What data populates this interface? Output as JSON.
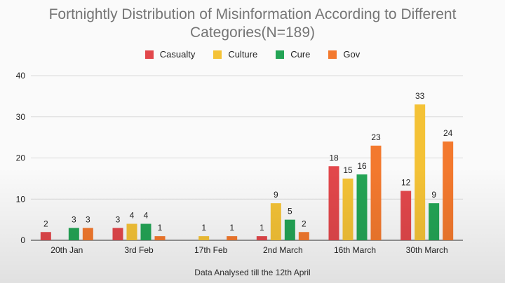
{
  "chart_data": {
    "type": "bar",
    "title": "Fortnightly Distribution of Misinformation According to Different Categories(N=189)",
    "title_lines": [
      "Fortnightly Distribution of Misinformation According to Different",
      "Categories(N=189)"
    ],
    "categories": [
      "20th Jan",
      "3rd Feb",
      "17th Feb",
      "2nd March",
      "16th March",
      "30th March"
    ],
    "series": [
      {
        "name": "Casualty",
        "color": "#e2474b",
        "values": [
          2,
          3,
          0,
          1,
          18,
          12
        ]
      },
      {
        "name": "Culture",
        "color": "#f4c236",
        "values": [
          0,
          4,
          1,
          9,
          15,
          33
        ]
      },
      {
        "name": "Cure",
        "color": "#23a455",
        "values": [
          3,
          4,
          0,
          5,
          16,
          9
        ]
      },
      {
        "name": "Gov",
        "color": "#f3792e",
        "values": [
          3,
          1,
          1,
          2,
          23,
          24
        ]
      }
    ],
    "ylim": [
      0,
      40
    ],
    "yticks": [
      0,
      10,
      20,
      30,
      40
    ],
    "xlabel": "Data Analysed till the 12th April",
    "ylabel": "",
    "grid": true,
    "legend_position": "top"
  }
}
